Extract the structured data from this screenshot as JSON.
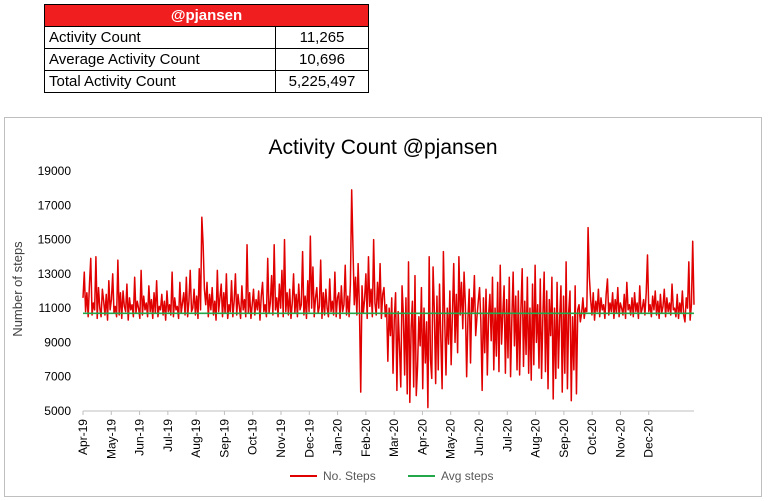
{
  "stats": {
    "header": "@pjansen",
    "rows": [
      {
        "label": "Activity Count",
        "value": "11,265"
      },
      {
        "label": "Average Activity Count",
        "value": "10,696"
      },
      {
        "label": "Total Activity Count",
        "value": "5,225,497"
      }
    ]
  },
  "colors": {
    "steps": "#e00000",
    "avg": "#22a84a",
    "header_bg": "#f01e1e"
  },
  "chart_data": {
    "type": "line",
    "title": "Activity Count @pjansen",
    "xlabel": "",
    "ylabel": "Number of steps",
    "ylim": [
      5000,
      19000
    ],
    "yticks": [
      5000,
      7000,
      9000,
      11000,
      13000,
      15000,
      17000,
      19000
    ],
    "ytick_labels": [
      "5000",
      "7000",
      "9000",
      "11000",
      "13000",
      "15000",
      "17000",
      "19000"
    ],
    "xticks": [
      "Apr-19",
      "May-19",
      "Jun-19",
      "Jul-19",
      "Aug-19",
      "Sep-19",
      "Oct-19",
      "Nov-19",
      "Dec-19",
      "Jan-20",
      "Feb-20",
      "Mar-20",
      "Apr-20",
      "May-20",
      "Jun-20",
      "Jul-20",
      "Aug-20",
      "Sep-20",
      "Oct-20",
      "Nov-20",
      "Dec-20"
    ],
    "grid": false,
    "legend": "bottom",
    "series": [
      {
        "name": "No. Steps",
        "values": [
          11600,
          13100,
          10800,
          11900,
          10500,
          12400,
          13900,
          10600,
          11300,
          10900,
          14000,
          10400,
          12200,
          11000,
          10500,
          12100,
          11400,
          10600,
          11800,
          10300,
          12600,
          10900,
          11500,
          13000,
          10700,
          11100,
          10500,
          13800,
          10600,
          11900,
          10400,
          12000,
          11100,
          10800,
          12400,
          10300,
          11600,
          10900,
          11200,
          10500,
          12800,
          10700,
          11400,
          11000,
          10400,
          13200,
          10600,
          11700,
          10900,
          11300,
          10500,
          12300,
          10800,
          11500,
          10400,
          11900,
          10700,
          12600,
          10500,
          11100,
          10900,
          11800,
          10600,
          11400,
          10300,
          12000,
          10800,
          11200,
          10600,
          13100,
          10500,
          11600,
          10900,
          11100,
          10400,
          12500,
          10700,
          11300,
          11900,
          10600,
          12800,
          10500,
          11400,
          13200,
          10800,
          11000,
          12100,
          10600,
          11700,
          10400,
          13300,
          10900,
          16300,
          14700,
          12100,
          11200,
          12500,
          10500,
          11800,
          10900,
          12200,
          10600,
          11400,
          10300,
          13200,
          10800,
          11600,
          12400,
          10500,
          11900,
          10700,
          13000,
          10400,
          11200,
          10800,
          12600,
          10500,
          11400,
          13000,
          10600,
          11800,
          11100,
          10400,
          12300,
          10900,
          11500,
          10500,
          14700,
          10700,
          11900,
          10400,
          11200,
          12100,
          10600,
          11500,
          10900,
          12000,
          10300,
          11700,
          12500,
          10800,
          11200,
          10500,
          13900,
          10700,
          11300,
          12900,
          10600,
          14700,
          10900,
          11600,
          10500,
          12400,
          11000,
          13200,
          10500,
          15000,
          10800,
          11900,
          10600,
          12100,
          10400,
          11300,
          13000,
          10700,
          11800,
          10500,
          12400,
          10900,
          11200,
          14300,
          10600,
          11700,
          10400,
          12600,
          10800,
          15200,
          11000,
          13400,
          10500,
          11600,
          12200,
          10700,
          11100,
          13800,
          10400,
          11900,
          10600,
          12100,
          11000,
          10500,
          12700,
          10800,
          11400,
          10600,
          13100,
          10500,
          11600,
          11900,
          10400,
          12300,
          10800,
          11200,
          13500,
          10600,
          11700,
          10500,
          12400,
          17900,
          14500,
          11200,
          12800,
          10600,
          13600,
          11000,
          6100,
          12300,
          10700,
          11500,
          13000,
          10400,
          14000,
          11100,
          12100,
          10500,
          15000,
          11300,
          10600,
          12500,
          11000,
          13600,
          10400,
          11800,
          12200,
          10500,
          11200,
          7900,
          11000,
          9400,
          11600,
          7200,
          10400,
          11900,
          6200,
          10800,
          8800,
          6400,
          12300,
          10600,
          7100,
          11600,
          6000,
          13700,
          5500,
          9800,
          11400,
          6400,
          12900,
          5900,
          7600,
          10500,
          8800,
          12200,
          6300,
          11000,
          7800,
          10200,
          5200,
          14000,
          8000,
          6900,
          13400,
          10800,
          6600,
          11700,
          7400,
          12400,
          9200,
          6300,
          14300,
          10400,
          7100,
          11000,
          8900,
          12000,
          7700,
          10700,
          13600,
          9000,
          11800,
          8400,
          14000,
          10600,
          12500,
          9800,
          13100,
          11200,
          7000,
          10400,
          12100,
          7800,
          11600,
          10800,
          12900,
          9400,
          10500,
          11400,
          12200,
          10200,
          6200,
          11600,
          8400,
          12100,
          7100,
          10600,
          11800,
          9100,
          12800,
          7400,
          11000,
          8200,
          12500,
          7300,
          13500,
          8900,
          10700,
          12300,
          7200,
          11500,
          8100,
          12800,
          7000,
          10400,
          13100,
          8800,
          11700,
          7400,
          12000,
          7100,
          10900,
          13300,
          7600,
          11400,
          8300,
          12800,
          7200,
          11000,
          6800,
          12400,
          7700,
          13500,
          9000,
          11200,
          7500,
          12700,
          6900,
          10500,
          13100,
          7300,
          12000,
          6300,
          11500,
          9400,
          12800,
          5700,
          11000,
          6900,
          12500,
          7500,
          10400,
          12300,
          6100,
          11700,
          7200,
          13700,
          6300,
          10800,
          12000,
          5600,
          10500,
          7400,
          12300,
          6000,
          10900,
          11200,
          10200,
          10700,
          11600,
          10400,
          11000,
          10800,
          15700,
          12800,
          11500,
          10600,
          11900,
          10300,
          11400,
          10800,
          12100,
          10500,
          11600,
          10900,
          11200,
          10400,
          11800,
          12700,
          10600,
          11300,
          10800,
          11900,
          10400,
          11500,
          10700,
          12200,
          10500,
          11300,
          11000,
          10600,
          11800,
          10400,
          12500,
          10900,
          11200,
          10600,
          11600,
          10500,
          11900,
          10800,
          11300,
          10400,
          12300,
          10700,
          11000,
          11500,
          10600,
          11900,
          14100,
          10800,
          11200,
          10500,
          11700,
          10900,
          12000,
          10600,
          11400,
          10400,
          11800,
          10700,
          11100,
          12100,
          10500,
          11600,
          10800,
          11300,
          10600,
          12400,
          10900,
          11000,
          10500,
          11800,
          10400,
          11300,
          10700,
          12000,
          10600,
          10200,
          11600,
          11000,
          13700,
          10300,
          11200,
          14900,
          11200
        ]
      },
      {
        "name": "Avg steps",
        "values": [
          10696
        ]
      }
    ]
  }
}
